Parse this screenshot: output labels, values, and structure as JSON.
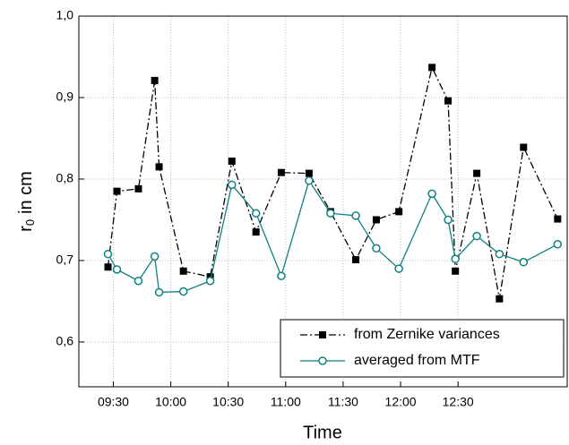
{
  "chart_data": {
    "type": "line",
    "xlabel": "Time",
    "ylabel_main": "r",
    "ylabel_sub": "0",
    "ylabel_rest": "in cm",
    "x": [
      567.2,
      571.9,
      583.1,
      591.6,
      593.9,
      606.6,
      620.6,
      631.9,
      644.5,
      657.7,
      672.2,
      683.4,
      696.6,
      707.3,
      719.1,
      736.4,
      744.8,
      748.6,
      759.8,
      771.6,
      784.2,
      802.0
    ],
    "series": [
      {
        "name": "from Zernike variances",
        "color": "#000000",
        "marker": "square",
        "dash": "dashdot",
        "values": [
          0.692,
          0.785,
          0.788,
          0.921,
          0.815,
          0.687,
          0.68,
          0.822,
          0.735,
          0.808,
          0.807,
          0.76,
          0.701,
          0.75,
          0.76,
          0.937,
          0.896,
          0.687,
          0.807,
          0.653,
          0.839,
          0.751
        ]
      },
      {
        "name": "averaged from MTF",
        "color": "#0f8080",
        "marker": "circle",
        "dash": "solid",
        "values": [
          0.708,
          0.689,
          0.675,
          0.705,
          0.661,
          0.662,
          0.675,
          0.793,
          0.758,
          0.681,
          0.798,
          0.758,
          0.755,
          0.715,
          0.69,
          0.782,
          0.75,
          0.702,
          0.73,
          0.708,
          0.698,
          0.72
        ]
      }
    ],
    "xlim": [
      552,
      807
    ],
    "xticks": [
      {
        "value": 570,
        "label": "09:30"
      },
      {
        "value": 600,
        "label": "10:00"
      },
      {
        "value": 630,
        "label": "10:30"
      },
      {
        "value": 660,
        "label": "11:00"
      },
      {
        "value": 690,
        "label": "11:30"
      },
      {
        "value": 720,
        "label": "12:00"
      },
      {
        "value": 750,
        "label": "12:30"
      }
    ],
    "ylim": [
      0.545,
      1.0
    ],
    "yticks": [
      {
        "value": 0.6,
        "label": "0,6"
      },
      {
        "value": 0.7,
        "label": "0,7"
      },
      {
        "value": 0.8,
        "label": "0,8"
      },
      {
        "value": 0.9,
        "label": "0,9"
      },
      {
        "value": 1.0,
        "label": "1,0"
      }
    ],
    "grid": true,
    "legend": "lower right"
  }
}
